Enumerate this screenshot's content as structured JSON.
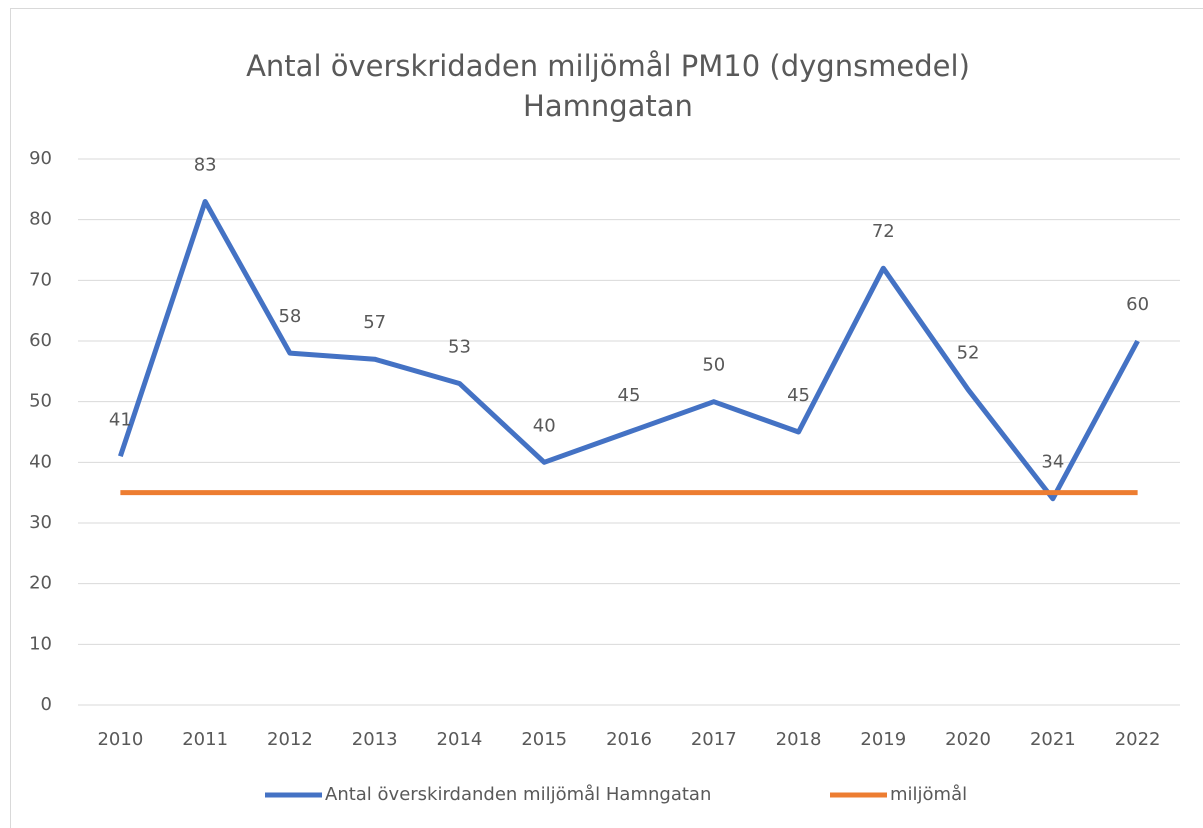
{
  "chart_data": {
    "type": "line",
    "title": [
      "Antal överskridaden miljömål PM10 (dygnsmedel)",
      "Hamngatan"
    ],
    "categories": [
      "2010",
      "2011",
      "2012",
      "2013",
      "2014",
      "2015",
      "2016",
      "2017",
      "2018",
      "2019",
      "2020",
      "2021",
      "2022"
    ],
    "series": [
      {
        "name": "Antal överskirdanden miljömål Hamngatan",
        "color": "#4472c4",
        "values": [
          41,
          83,
          58,
          57,
          53,
          40,
          45,
          50,
          45,
          72,
          52,
          34,
          60
        ],
        "data_labels": true
      },
      {
        "name": "miljömål",
        "color": "#ed7d31",
        "values": [
          35,
          35,
          35,
          35,
          35,
          35,
          35,
          35,
          35,
          35,
          35,
          35,
          35
        ],
        "data_labels": false
      }
    ],
    "ylim": [
      0,
      90
    ],
    "yticks": [
      0,
      10,
      20,
      30,
      40,
      50,
      60,
      70,
      80,
      90
    ],
    "grid": true,
    "legend": "bottom"
  }
}
